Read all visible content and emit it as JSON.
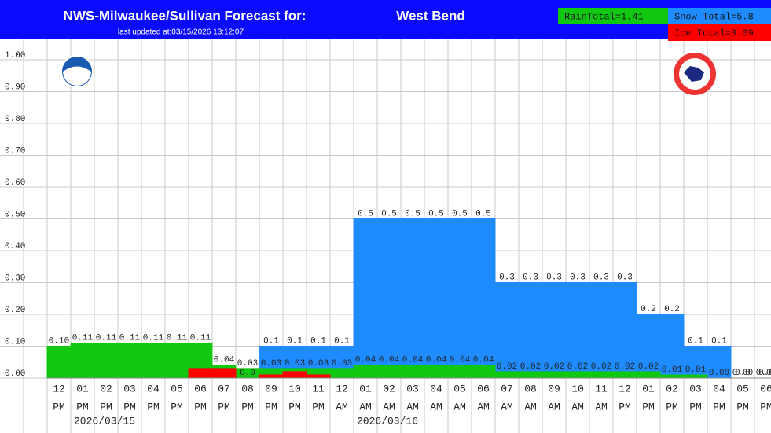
{
  "chart_data": {
    "type": "bar",
    "title": "NWS-Milwaukee/Sullivan Forecast for:",
    "location": "West Bend",
    "subtitle": "last updated at:03/15/2026 13:12:07",
    "totals": [
      {
        "label": "RainTotal=1.41",
        "color": "#10c810"
      },
      {
        "label": "Snow Total=5.8",
        "color": "#1e8cff"
      },
      {
        "label": "Ice Total=0.09",
        "color": "#ff0000"
      }
    ],
    "categories": [
      "12",
      "01",
      "02",
      "03",
      "04",
      "05",
      "06",
      "07",
      "08",
      "09",
      "10",
      "11",
      "12",
      "01",
      "02",
      "03",
      "04",
      "05",
      "06",
      "07",
      "08",
      "09",
      "10",
      "11",
      "12",
      "01",
      "02",
      "03",
      "04",
      "05",
      "06"
    ],
    "periods": [
      "PM",
      "PM",
      "PM",
      "PM",
      "PM",
      "PM",
      "PM",
      "PM",
      "PM",
      "PM",
      "PM",
      "PM",
      "AM",
      "AM",
      "AM",
      "AM",
      "AM",
      "AM",
      "AM",
      "AM",
      "AM",
      "AM",
      "AM",
      "AM",
      "PM",
      "PM",
      "PM",
      "PM",
      "PM",
      "PM",
      "PM"
    ],
    "dates": [
      null,
      null,
      "2026/03/15",
      null,
      null,
      null,
      null,
      null,
      null,
      null,
      null,
      null,
      null,
      null,
      "2026/03/16",
      null,
      null,
      null,
      null,
      null,
      null,
      null,
      null,
      null,
      null,
      null,
      null,
      null,
      null,
      null,
      null
    ],
    "series": [
      {
        "name": "Snow",
        "color": "#1e8cff",
        "values": [
          0,
          0,
          0,
          0,
          0,
          0,
          0,
          0,
          0,
          0.1,
          0.1,
          0.1,
          0.1,
          0.5,
          0.5,
          0.5,
          0.5,
          0.5,
          0.5,
          0.3,
          0.3,
          0.3,
          0.3,
          0.3,
          0.3,
          0.2,
          0.2,
          0.1,
          0.1,
          0,
          0
        ],
        "value_labels": [
          null,
          null,
          null,
          null,
          null,
          null,
          null,
          null,
          "0.0",
          "0.1",
          "0.1",
          "0.1",
          "0.1",
          "0.5",
          "0.5",
          "0.5",
          "0.5",
          "0.5",
          "0.5",
          "0.3",
          "0.3",
          "0.3",
          "0.3",
          "0.3",
          "0.3",
          "0.2",
          "0.2",
          "0.1",
          "0.1",
          "0.0",
          "0.0"
        ]
      },
      {
        "name": "Rain",
        "color": "#10c810",
        "values": [
          0.1,
          0.11,
          0.11,
          0.11,
          0.11,
          0.11,
          0.11,
          0.04,
          0.03,
          0.03,
          0.03,
          0.03,
          0.03,
          0.04,
          0.04,
          0.04,
          0.04,
          0.04,
          0.04,
          0.02,
          0.02,
          0.02,
          0.02,
          0.02,
          0.02,
          0.02,
          0.01,
          0.01,
          0,
          0,
          0
        ],
        "value_labels": [
          "0.10",
          "0.11",
          "0.11",
          "0.11",
          "0.11",
          "0.11",
          "0.11",
          "0.04",
          "0.03",
          "0.03",
          "0.03",
          "0.03",
          "0.03",
          "0.04",
          "0.04",
          "0.04",
          "0.04",
          "0.04",
          "0.04",
          "0.02",
          "0.02",
          "0.02",
          "0.02",
          "0.02",
          "0.02",
          "0.02",
          "0.01",
          "0.01",
          "0.00",
          "0.00",
          "0.00"
        ]
      },
      {
        "name": "Ice",
        "color": "#ff0000",
        "values": [
          0,
          0,
          0,
          0,
          0,
          0,
          0.03,
          0.03,
          0,
          0.01,
          0.02,
          0.01,
          0,
          0,
          0,
          0,
          0,
          0,
          0,
          0,
          0,
          0,
          0,
          0,
          0,
          0,
          0,
          0,
          0,
          0,
          0
        ]
      }
    ],
    "ylim": [
      0,
      1.05
    ],
    "yticks": [
      {
        "value": 0,
        "label": "0.00"
      },
      {
        "value": 0.1,
        "label": "0.10"
      },
      {
        "value": 0.2,
        "label": "0.20"
      },
      {
        "value": 0.3,
        "label": "0.30"
      },
      {
        "value": 0.4,
        "label": "0.40"
      },
      {
        "value": 0.5,
        "label": "0.50"
      },
      {
        "value": 0.6,
        "label": "0.60"
      },
      {
        "value": 0.7,
        "label": "0.70"
      },
      {
        "value": 0.8,
        "label": "0.80"
      },
      {
        "value": 0.9,
        "label": "0.90"
      },
      {
        "value": 1,
        "label": "1.00"
      }
    ],
    "grid": true
  }
}
